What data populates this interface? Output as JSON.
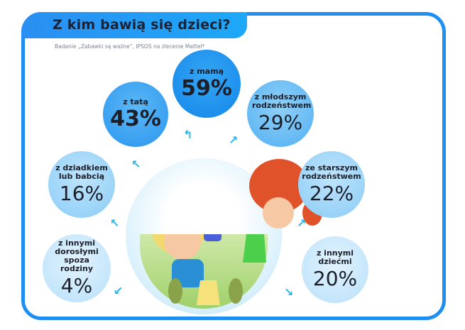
{
  "header": {
    "title": "Z kim bawią się dzieci?",
    "subtitle": "Badanie „Zabawki są ważne”, IPSOS na zlecenie Mattel*"
  },
  "items": [
    {
      "label": "z mamą",
      "value": "59%"
    },
    {
      "label": "z tatą",
      "value": "43%"
    },
    {
      "label": "z młodszym rodzeństwem",
      "value": "29%"
    },
    {
      "label": "ze starszym rodzeństwem",
      "value": "22%"
    },
    {
      "label": "z dziadkiem lub babcią",
      "value": "16%"
    },
    {
      "label": "z innymi dziećmi",
      "value": "20%"
    },
    {
      "label": "z innymi dorosłymi spoza rodziny",
      "value": "4%"
    }
  ],
  "colors": {
    "accent": "#1e8ef0",
    "arrow": "#28b4e6"
  },
  "illustration": "children-playing-illustration"
}
